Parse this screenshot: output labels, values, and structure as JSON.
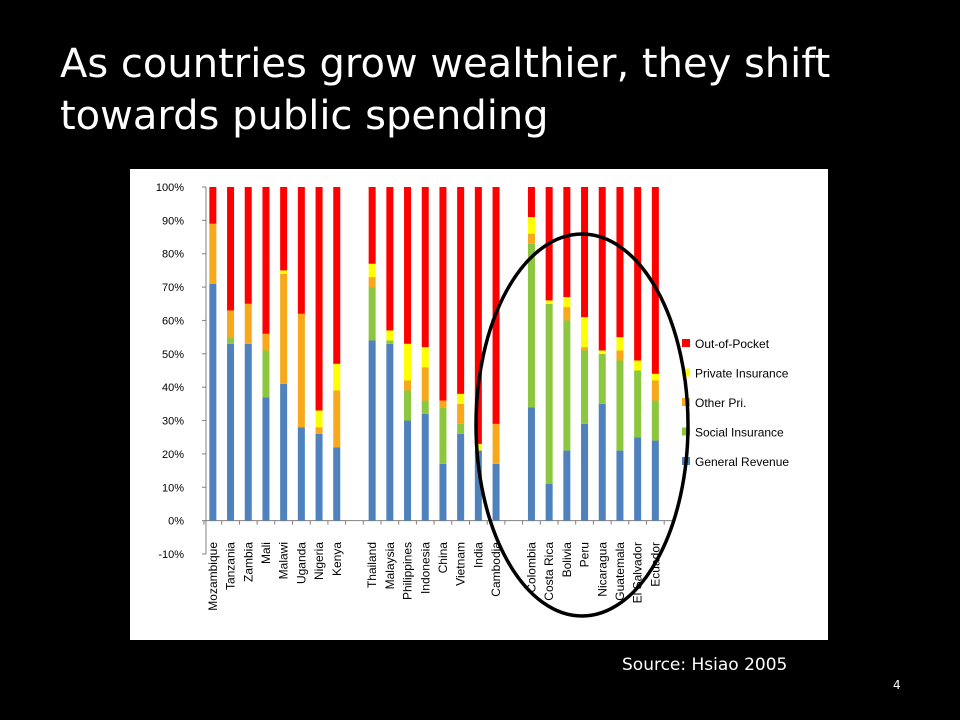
{
  "slide": {
    "title_line1": "As countries grow wealthier, they shift",
    "title_line2": "towards public spending",
    "source": "Source: Hsiao 2005",
    "page_number": "4"
  },
  "chart_data": {
    "type": "bar",
    "stacked": true,
    "title": "",
    "xlabel": "",
    "ylabel": "",
    "ylim": [
      -10,
      100
    ],
    "y_ticks": [
      "-10%",
      "0%",
      "10%",
      "20%",
      "30%",
      "40%",
      "50%",
      "60%",
      "70%",
      "80%",
      "90%",
      "100%"
    ],
    "y_tick_values": [
      -10,
      0,
      10,
      20,
      30,
      40,
      50,
      60,
      70,
      80,
      90,
      100
    ],
    "grid": false,
    "legend_position": "right",
    "groups": [
      [
        "Mozambique",
        "Tanzania",
        "Zambia",
        "Mali",
        "Malawi",
        "Uganda",
        "Nigeria",
        "Kenya"
      ],
      [
        "Thailand",
        "Malaysia",
        "Philippines",
        "Indonesia",
        "China",
        "Vietnam",
        "India",
        "Cambodia"
      ],
      [
        "Colombia",
        "Costa Rica",
        "Bolivia",
        "Peru",
        "Nicaragua",
        "Guatemala",
        "El Salvador",
        "Ecuador"
      ]
    ],
    "categories": [
      "Mozambique",
      "Tanzania",
      "Zambia",
      "Mali",
      "Malawi",
      "Uganda",
      "Nigeria",
      "Kenya",
      "Thailand",
      "Malaysia",
      "Philippines",
      "Indonesia",
      "China",
      "Vietnam",
      "India",
      "Cambodia",
      "Colombia",
      "Costa Rica",
      "Bolivia",
      "Peru",
      "Nicaragua",
      "Guatemala",
      "El Salvador",
      "Ecuador"
    ],
    "series": [
      {
        "name": "General Revenue",
        "color": "#4F81BD",
        "values": [
          71,
          53,
          53,
          37,
          41,
          28,
          26,
          22,
          54,
          53,
          30,
          32,
          17,
          26,
          21,
          17,
          34,
          11,
          21,
          29,
          35,
          21,
          25,
          24
        ]
      },
      {
        "name": "Social Insurance",
        "color": "#8DC63F",
        "values": [
          0,
          2,
          0,
          14,
          0,
          0,
          0,
          0,
          16,
          1,
          9,
          4,
          17,
          3,
          0,
          0,
          49,
          54,
          39,
          22,
          15,
          27,
          20,
          12
        ]
      },
      {
        "name": "Other Pri.",
        "color": "#F7A81B",
        "values": [
          18,
          8,
          12,
          5,
          33,
          34,
          2,
          17,
          3,
          0,
          3,
          10,
          2,
          6,
          0,
          12,
          3,
          0,
          4,
          1,
          0,
          3,
          0,
          6
        ]
      },
      {
        "name": "Private Insurance",
        "color": "#FFFF00",
        "values": [
          0,
          0,
          0,
          0,
          1,
          0,
          5,
          8,
          4,
          3,
          11,
          6,
          0,
          3,
          2,
          0,
          5,
          1,
          3,
          9,
          1,
          4,
          3,
          2
        ]
      },
      {
        "name": "Out-of-Pocket",
        "color": "#FF0000",
        "values": [
          11,
          37,
          35,
          44,
          25,
          38,
          67,
          53,
          23,
          43,
          47,
          48,
          64,
          62,
          77,
          71,
          9,
          34,
          33,
          39,
          49,
          45,
          52,
          56
        ]
      }
    ],
    "legend_order": [
      "Out-of-Pocket",
      "Private Insurance",
      "Other Pri.",
      "Social Insurance",
      "General Revenue"
    ],
    "annotation": {
      "shape": "ellipse",
      "color": "#000000"
    }
  }
}
